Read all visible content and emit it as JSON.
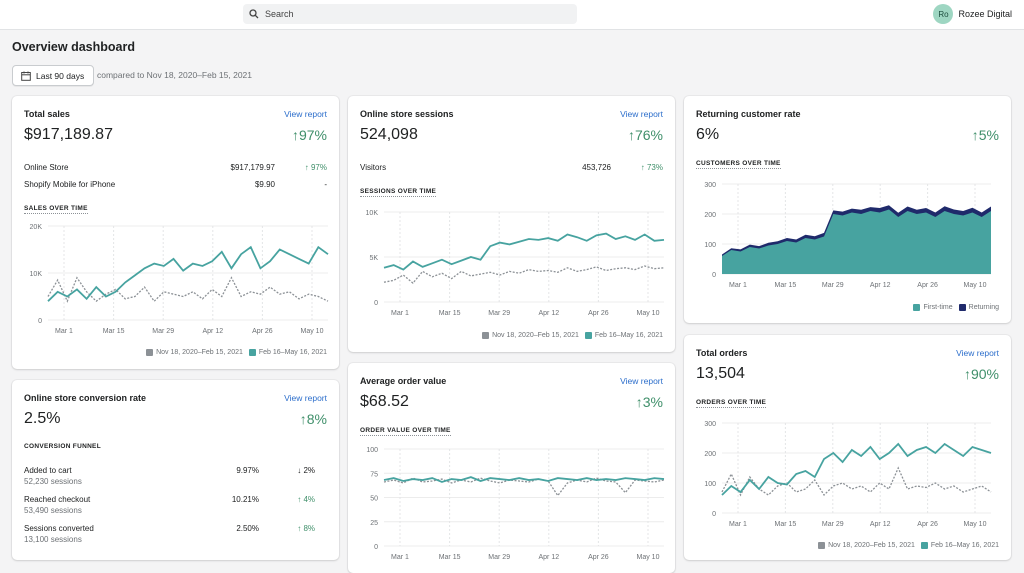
{
  "topbar": {
    "search_placeholder": "Search",
    "user_initials": "Ro",
    "user_name": "Rozee Digital"
  },
  "page": {
    "title": "Overview dashboard",
    "date_range_button": "Last 90 days",
    "compare_text": "compared to Nov 18, 2020–Feb 15, 2021"
  },
  "colors": {
    "current": "#47a3a0",
    "previous": "#8c9196",
    "returning": "#1f2a6b",
    "accent_green": "#3f8f6a",
    "link": "#2c6ecb"
  },
  "legend": {
    "previous": "Nov 18, 2020–Feb 15, 2021",
    "current": "Feb 16–May 16, 2021"
  },
  "x_ticks": [
    "Mar 1",
    "Mar 15",
    "Mar 29",
    "Apr 12",
    "Apr 26",
    "May 10"
  ],
  "total_sales": {
    "title": "Total sales",
    "view_report": "View report",
    "value": "$917,189.87",
    "delta": "97%",
    "breakdown": [
      {
        "label": "Online Store",
        "value": "$917,179.97",
        "delta": "97%",
        "arrow": "up"
      },
      {
        "label": "Shopify Mobile for iPhone",
        "value": "$9.90",
        "delta": "-",
        "arrow": ""
      }
    ],
    "chart_title": "SALES OVER TIME"
  },
  "sessions": {
    "title": "Online store sessions",
    "view_report": "View report",
    "value": "524,098",
    "delta": "76%",
    "breakdown": [
      {
        "label": "Visitors",
        "value": "453,726",
        "delta": "73%",
        "arrow": "up"
      }
    ],
    "chart_title": "SESSIONS OVER TIME"
  },
  "returning": {
    "title": "Returning customer rate",
    "value": "6%",
    "delta": "5%",
    "chart_title": "CUSTOMERS OVER TIME",
    "legend_first": "First-time",
    "legend_returning": "Returning"
  },
  "conversion": {
    "title": "Online store conversion rate",
    "view_report": "View report",
    "value": "2.5%",
    "delta": "8%",
    "funnel_title": "CONVERSION FUNNEL",
    "steps": [
      {
        "label": "Added to cart",
        "sessions": "52,230 sessions",
        "pct": "9.97%",
        "delta": "2%",
        "arrow": "down"
      },
      {
        "label": "Reached checkout",
        "sessions": "53,490 sessions",
        "pct": "10.21%",
        "delta": "4%",
        "arrow": "up"
      },
      {
        "label": "Sessions converted",
        "sessions": "13,100 sessions",
        "pct": "2.50%",
        "delta": "8%",
        "arrow": "up"
      }
    ]
  },
  "aov": {
    "title": "Average order value",
    "view_report": "View report",
    "value": "$68.52",
    "delta": "3%",
    "chart_title": "ORDER VALUE OVER TIME"
  },
  "orders": {
    "title": "Total orders",
    "view_report": "View report",
    "value": "13,504",
    "delta": "90%",
    "chart_title": "ORDERS OVER TIME"
  },
  "chart_data": [
    {
      "type": "line",
      "id": "sales",
      "yticks": [
        "20K",
        "10K",
        "0"
      ],
      "ylim": [
        0,
        20000
      ],
      "series": [
        {
          "name": "Feb 16–May 16, 2021",
          "values": [
            4000,
            6000,
            5000,
            6500,
            4500,
            7000,
            5000,
            6000,
            8000,
            9500,
            11000,
            12000,
            11500,
            13000,
            10500,
            12000,
            11500,
            12500,
            14500,
            11000,
            14000,
            15500,
            11000,
            12500,
            15000,
            14000,
            13000,
            12000,
            15500,
            14000
          ]
        },
        {
          "name": "Nov 18, 2020–Feb 15, 2021",
          "values": [
            5000,
            8500,
            4000,
            9000,
            6000,
            4000,
            5500,
            6500,
            4500,
            5000,
            7000,
            4000,
            6000,
            5500,
            5000,
            6000,
            4500,
            6500,
            5000,
            9000,
            5000,
            6000,
            5500,
            7000,
            5500,
            6000,
            4500,
            5500,
            5000,
            4000
          ]
        }
      ]
    },
    {
      "type": "line",
      "id": "sessions",
      "yticks": [
        "10K",
        "5K",
        "0"
      ],
      "ylim": [
        0,
        10000
      ],
      "series": [
        {
          "name": "Feb 16–May 16, 2021",
          "values": [
            3800,
            4100,
            3600,
            4500,
            3900,
            4300,
            4700,
            4200,
            4600,
            5000,
            4700,
            6200,
            6600,
            6400,
            6700,
            7000,
            6900,
            7100,
            6800,
            7500,
            7200,
            6800,
            7400,
            7600,
            7000,
            7300,
            6900,
            7500,
            6800,
            6900
          ]
        },
        {
          "name": "Nov 18, 2020–Feb 15, 2021",
          "values": [
            2200,
            2400,
            3000,
            2100,
            3400,
            2800,
            3200,
            2600,
            3400,
            2900,
            3100,
            3300,
            3000,
            3400,
            3200,
            3600,
            3400,
            3500,
            3300,
            3800,
            3400,
            3600,
            3900,
            3500,
            3700,
            3800,
            3600,
            4000,
            3700,
            3800
          ]
        }
      ]
    },
    {
      "type": "area",
      "id": "customers",
      "yticks": [
        "300",
        "200",
        "100",
        "0"
      ],
      "ylim": [
        0,
        300
      ],
      "series": [
        {
          "name": "First-time",
          "values": [
            60,
            80,
            75,
            90,
            85,
            95,
            100,
            110,
            105,
            120,
            115,
            125,
            200,
            195,
            205,
            200,
            210,
            205,
            215,
            190,
            210,
            200,
            205,
            190,
            210,
            200,
            195,
            205,
            190,
            210
          ]
        },
        {
          "name": "Returning",
          "values": [
            5,
            6,
            7,
            8,
            8,
            9,
            9,
            10,
            10,
            11,
            11,
            12,
            12,
            13,
            13,
            14,
            13,
            15,
            14,
            14,
            15,
            14,
            15,
            15,
            16,
            15,
            15,
            16,
            15,
            15
          ]
        }
      ]
    },
    {
      "type": "line",
      "id": "order_value",
      "yticks": [
        "100",
        "75",
        "50",
        "25",
        "0"
      ],
      "ylim": [
        0,
        100
      ],
      "series": [
        {
          "name": "Feb 16–May 16, 2021",
          "values": [
            68,
            70,
            67,
            69,
            68,
            70,
            66,
            69,
            68,
            71,
            67,
            70,
            69,
            68,
            70,
            68,
            69,
            67,
            70,
            69,
            68,
            70,
            68,
            69,
            68,
            70,
            69,
            68,
            70,
            69
          ]
        },
        {
          "name": "Nov 18, 2020–Feb 15, 2021",
          "values": [
            66,
            68,
            65,
            70,
            66,
            67,
            69,
            65,
            68,
            66,
            70,
            67,
            65,
            68,
            67,
            66,
            69,
            67,
            52,
            65,
            68,
            66,
            70,
            67,
            66,
            55,
            68,
            67,
            66,
            68
          ]
        }
      ]
    },
    {
      "type": "line",
      "id": "orders",
      "yticks": [
        "300",
        "200",
        "100",
        "0"
      ],
      "ylim": [
        0,
        300
      ],
      "series": [
        {
          "name": "Feb 16–May 16, 2021",
          "values": [
            60,
            90,
            70,
            110,
            80,
            120,
            100,
            95,
            130,
            140,
            120,
            180,
            200,
            170,
            210,
            190,
            220,
            180,
            200,
            230,
            190,
            210,
            220,
            200,
            230,
            210,
            190,
            220,
            210,
            200
          ]
        },
        {
          "name": "Nov 18, 2020–Feb 15, 2021",
          "values": [
            70,
            130,
            60,
            120,
            80,
            60,
            90,
            100,
            70,
            80,
            110,
            60,
            90,
            100,
            80,
            90,
            70,
            100,
            80,
            150,
            80,
            90,
            85,
            100,
            80,
            90,
            70,
            80,
            90,
            70
          ]
        }
      ]
    }
  ]
}
